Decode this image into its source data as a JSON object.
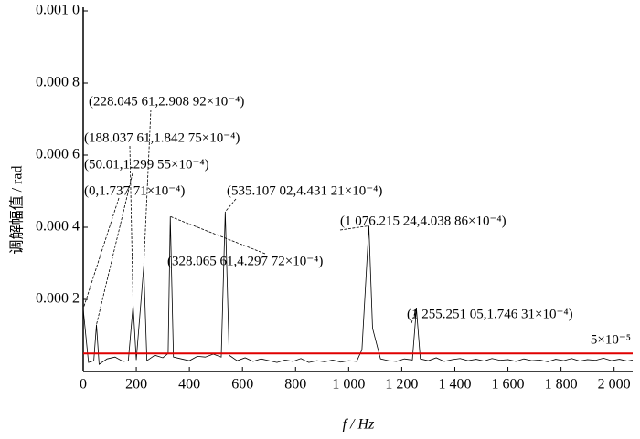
{
  "chart_data": {
    "type": "line",
    "xlabel": "f / Hz",
    "ylabel": "调解幅值 / rad",
    "xlim": [
      0,
      2070
    ],
    "ylim": [
      0,
      0.001
    ],
    "xticks": [
      0,
      200,
      400,
      600,
      800,
      {
        "value": 1000,
        "label": "1 000"
      },
      {
        "value": 1200,
        "label": "1 200"
      },
      {
        "value": 1400,
        "label": "1 400"
      },
      {
        "value": 1600,
        "label": "1 600"
      },
      {
        "value": 1800,
        "label": "1 800"
      },
      {
        "value": 2000,
        "label": "2 000"
      }
    ],
    "yticks": [
      {
        "value": 0.0002,
        "label": "0.000 2"
      },
      {
        "value": 0.0004,
        "label": "0.000 4"
      },
      {
        "value": 0.0006,
        "label": "0.000 6"
      },
      {
        "value": 0.0008,
        "label": "0.000 8"
      },
      {
        "value": 0.001,
        "label": "0.001 0"
      }
    ],
    "series": [
      {
        "color": "#000000",
        "x": [
          0,
          20,
          40,
          50.01,
          60,
          90,
          120,
          150,
          170,
          188.03761,
          200,
          228.04561,
          240,
          270,
          300,
          320,
          328.06561,
          340,
          370,
          400,
          430,
          460,
          490,
          520,
          535.10702,
          550,
          580,
          610,
          640,
          670,
          700,
          730,
          760,
          790,
          820,
          850,
          880,
          910,
          940,
          970,
          1000,
          1030,
          1050,
          1076.21524,
          1090,
          1120,
          1150,
          1180,
          1210,
          1240,
          1255.25105,
          1270,
          1300,
          1330,
          1360,
          1390,
          1420,
          1450,
          1480,
          1510,
          1540,
          1570,
          1600,
          1630,
          1660,
          1690,
          1720,
          1750,
          1780,
          1810,
          1840,
          1870,
          1900,
          1930,
          1960,
          1990,
          2020,
          2050,
          2070
        ],
        "values": [
          0.000173771,
          2.5e-05,
          3e-05,
          0.000129955,
          2e-05,
          3.5e-05,
          4e-05,
          2.8e-05,
          3e-05,
          0.000184275,
          3.2e-05,
          0.000290892,
          3e-05,
          4.5e-05,
          3.8e-05,
          5e-05,
          0.000429772,
          4e-05,
          3.5e-05,
          3e-05,
          4.2e-05,
          4e-05,
          4.8e-05,
          4e-05,
          0.000443121,
          4.5e-05,
          3e-05,
          3.8e-05,
          2.8e-05,
          3.5e-05,
          3e-05,
          2.5e-05,
          3.2e-05,
          2.8e-05,
          3.6e-05,
          2.5e-05,
          3e-05,
          2.7e-05,
          3.2e-05,
          2.6e-05,
          3e-05,
          2.8e-05,
          6e-05,
          0.000403886,
          0.00012,
          3.5e-05,
          3e-05,
          2.8e-05,
          3.5e-05,
          3.2e-05,
          0.000174631,
          3.5e-05,
          3e-05,
          3.8e-05,
          2.8e-05,
          3.3e-05,
          3.6e-05,
          3e-05,
          3.4e-05,
          2.9e-05,
          3.6e-05,
          3.1e-05,
          3.3e-05,
          2.8e-05,
          3.5e-05,
          3e-05,
          3.2e-05,
          2.7e-05,
          3.4e-05,
          3e-05,
          3.6e-05,
          2.9e-05,
          3.3e-05,
          3.1e-05,
          3.7e-05,
          3e-05,
          3.4e-05,
          2.9e-05,
          3.2e-05
        ]
      }
    ],
    "threshold": {
      "value": 5e-05,
      "label": "5×10⁻⁵",
      "color": "#e00000"
    },
    "annotations": [
      {
        "x": 0,
        "y": 0.000173771,
        "label": "(0,1.737 71×10⁻⁴)"
      },
      {
        "x": 50.01,
        "y": 0.000129955,
        "label": "(50.01,1.299 55×10⁻⁴)"
      },
      {
        "x": 188.03761,
        "y": 0.000184275,
        "label": "(188.037 61,1.842 75×10⁻⁴)"
      },
      {
        "x": 228.04561,
        "y": 0.000290892,
        "label": "(228.045 61,2.908 92×10⁻⁴)"
      },
      {
        "x": 328.06561,
        "y": 0.000429772,
        "label": "(328.065 61,4.297 72×10⁻⁴)"
      },
      {
        "x": 535.10702,
        "y": 0.000443121,
        "label": "(535.107 02,4.431 21×10⁻⁴)"
      },
      {
        "x": 1076.21524,
        "y": 0.000403886,
        "label": "(1 076.215 24,4.038 86×10⁻⁴)"
      },
      {
        "x": 1255.25105,
        "y": 0.000174631,
        "label": "(1 255.251 05,1.746 31×10⁻⁴)"
      }
    ]
  }
}
